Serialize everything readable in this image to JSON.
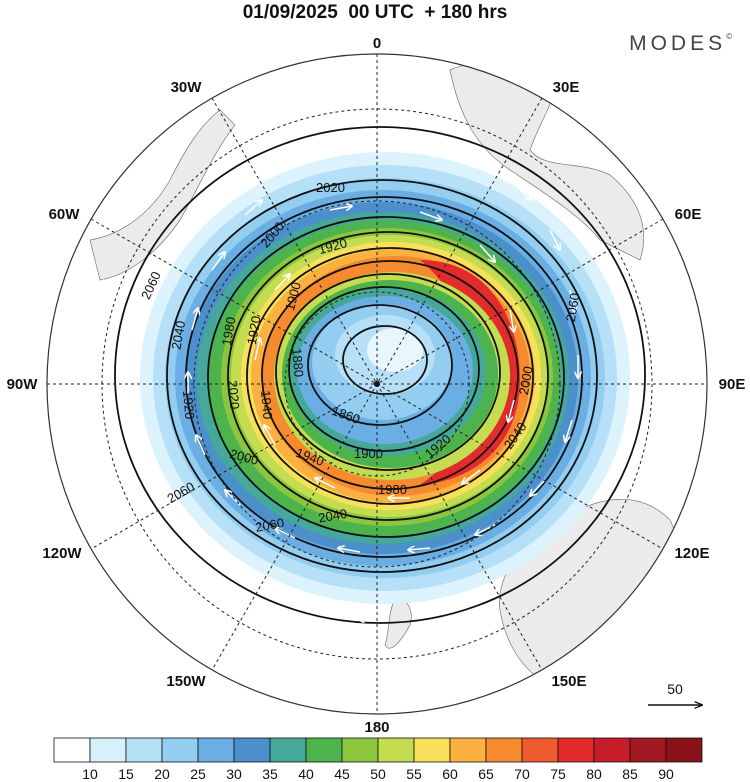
{
  "title": "01/09/2025  00 UTC  + 180 hrs",
  "brand": "MODES",
  "brand_mark": "©",
  "longitude_labels": {
    "n": "0",
    "ne30": "30E",
    "ne60": "60E",
    "e": "90E",
    "se120": "120E",
    "se150": "150E",
    "s": "180",
    "sw150": "150W",
    "sw120": "120W",
    "w": "90W",
    "nw60": "60W",
    "nw30": "30W"
  },
  "contour_labels": [
    "2060",
    "2040",
    "2000",
    "1980",
    "1920",
    "1900",
    "1880",
    "1940",
    "1860",
    "1920",
    "1900",
    "1980",
    "2040",
    "2060",
    "2060",
    "2040",
    "2000",
    "2020",
    "2000",
    "1920",
    "2060",
    "2020",
    "1920",
    "1940"
  ],
  "vector_reference": "50",
  "colorbar": {
    "labels": [
      "10",
      "15",
      "20",
      "25",
      "30",
      "35",
      "40",
      "45",
      "50",
      "55",
      "60",
      "65",
      "70",
      "75",
      "80",
      "85",
      "90"
    ],
    "colors": [
      "#ffffff",
      "#d6f0fc",
      "#b6e0f7",
      "#93cdf0",
      "#6aaee4",
      "#4b8fcb",
      "#45a89a",
      "#4db34d",
      "#8cc63f",
      "#c4dc50",
      "#f8e05a",
      "#fbb040",
      "#f58a2e",
      "#ee5b2e",
      "#e22b2b",
      "#c71d2b",
      "#a01820",
      "#8a1219"
    ]
  }
}
